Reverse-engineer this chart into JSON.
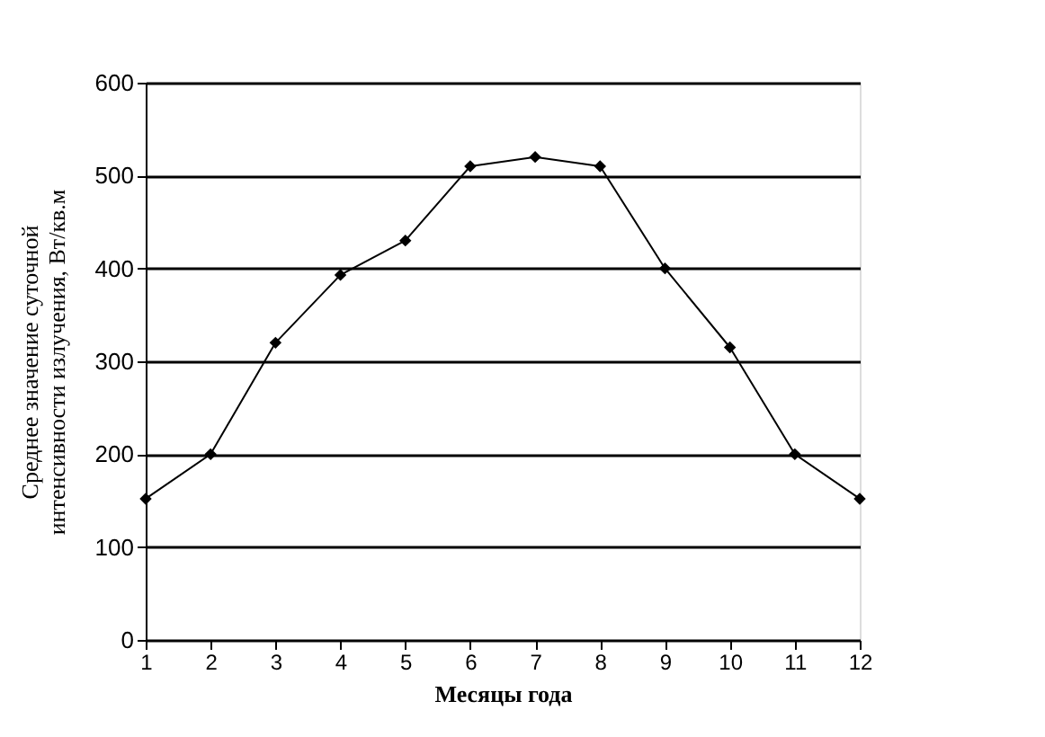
{
  "chart_data": {
    "type": "line",
    "xlabel": "Месяцы года",
    "ylabel": "Среднее значение суточной интенсивности излучения, Вт/кв.м",
    "x": [
      1,
      2,
      3,
      4,
      5,
      6,
      7,
      8,
      9,
      10,
      11,
      12
    ],
    "series": [
      {
        "color": "#000000",
        "values": [
          152,
          200,
          320,
          393,
          430,
          510,
          520,
          510,
          400,
          315,
          200,
          152
        ]
      }
    ],
    "xlim": [
      1,
      12
    ],
    "xticks": [
      1,
      2,
      3,
      4,
      5,
      6,
      7,
      8,
      9,
      10,
      11,
      12
    ],
    "ylim": [
      0,
      600
    ],
    "yticks": [
      0,
      100,
      200,
      300,
      400,
      500,
      600
    ],
    "grid": "y",
    "marker": "diamond",
    "line_style": "solid",
    "legend": false
  }
}
